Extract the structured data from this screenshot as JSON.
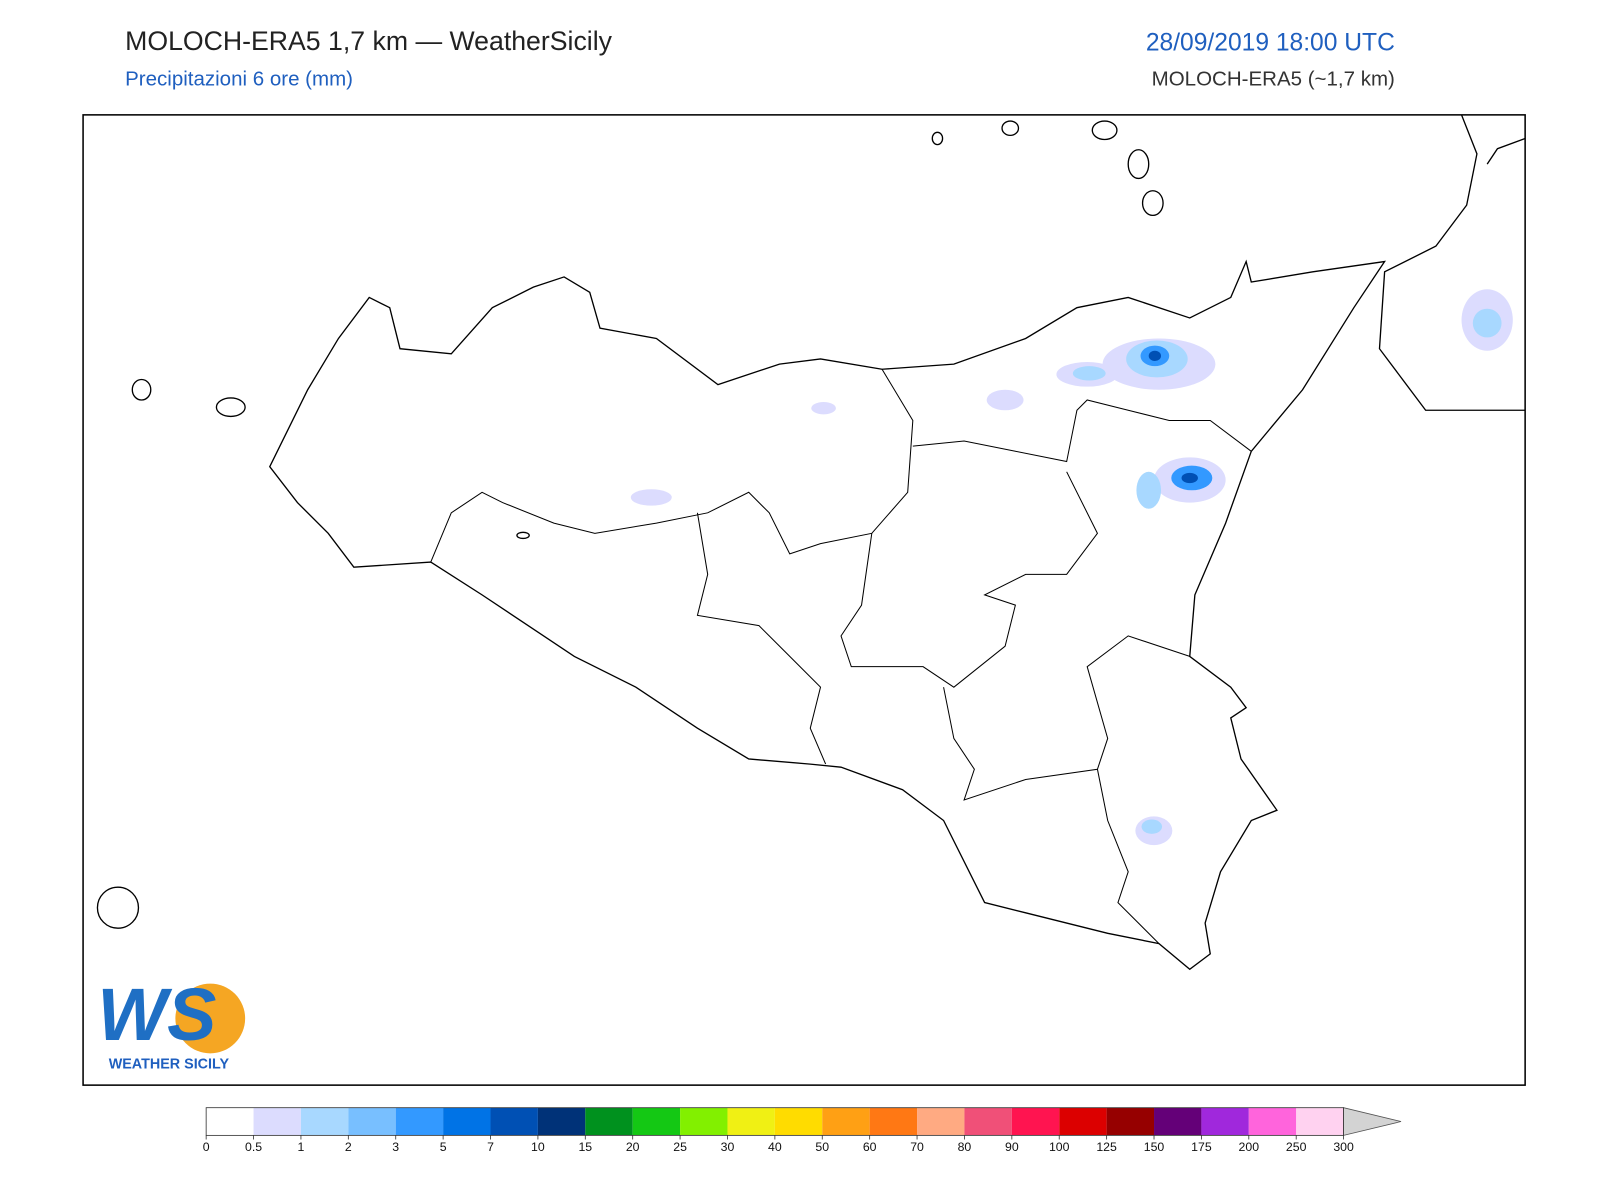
{
  "header": {
    "title": "MOLOCH-ERA5 1,7 km — WeatherSicily",
    "subtitle": "Precipitazioni 6 ore (mm)",
    "datetime": "28/09/2019 18:00 UTC",
    "model": "MOLOCH-ERA5 (~1,7 km)"
  },
  "logo": {
    "initials": "WS",
    "name": "WEATHER SICILY"
  },
  "colorbar": {
    "ticks": [
      0,
      0.5,
      1,
      2,
      3,
      5,
      7,
      10,
      15,
      20,
      25,
      30,
      40,
      50,
      60,
      70,
      80,
      90,
      100,
      125,
      150,
      175,
      200,
      250,
      300
    ],
    "colors": [
      "#ffffff",
      "#dcdcfe",
      "#a8d8ff",
      "#78bfff",
      "#3399ff",
      "#0073e6",
      "#0050b4",
      "#003278",
      "#00911e",
      "#14c814",
      "#82f000",
      "#f0f014",
      "#ffdc00",
      "#ffa014",
      "#ff7814",
      "#ffaa82",
      "#f05078",
      "#ff1450",
      "#dc0000",
      "#960000",
      "#640078",
      "#a028dc",
      "#ff64dc",
      "#ffd2f0"
    ],
    "over_color": "#d3d3d3"
  }
}
